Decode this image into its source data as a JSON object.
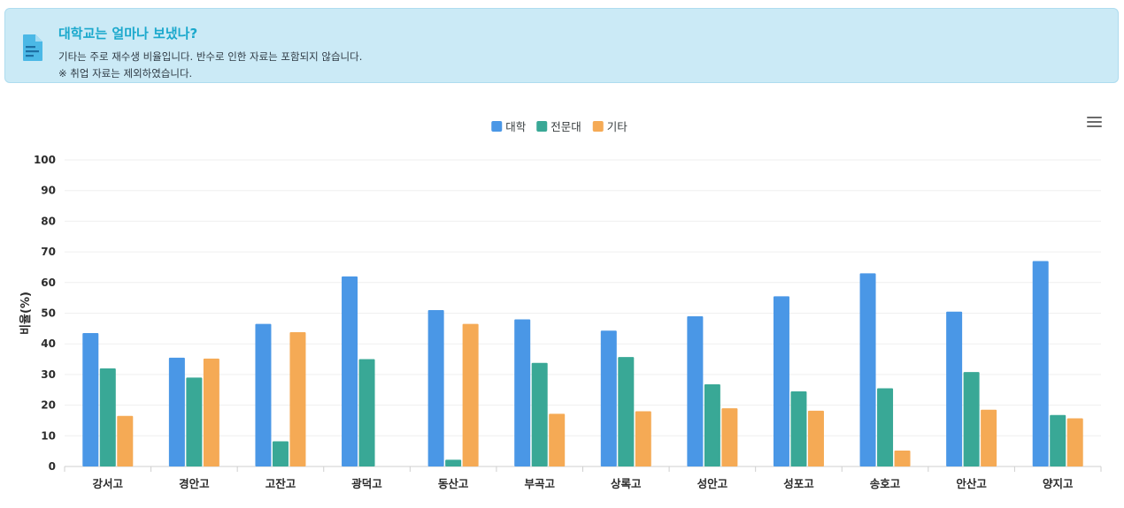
{
  "alert": {
    "icon": "document-icon",
    "title": "대학교는 얼마나 보냈나?",
    "line1": "기타는 주로 재수생 비율입니다. 반수로 인한 자료는 포함되지 않습니다.",
    "line2": "※ 취업 자료는 제외하였습니다."
  },
  "toolbar": {
    "menu_icon": "hamburger-menu-icon"
  },
  "chart_data": {
    "type": "bar",
    "categories": [
      "강서고",
      "경안고",
      "고잔고",
      "광덕고",
      "동산고",
      "부곡고",
      "상록고",
      "성안고",
      "성포고",
      "송호고",
      "안산고",
      "양지고"
    ],
    "series": [
      {
        "name": "대학",
        "color": "#4a97e6",
        "values": [
          43.5,
          35.5,
          46.5,
          62,
          51,
          48,
          44.3,
          49,
          55.5,
          63,
          50.5,
          67
        ]
      },
      {
        "name": "전문대",
        "color": "#39a896",
        "values": [
          32,
          29,
          8.2,
          35,
          2.2,
          33.8,
          35.7,
          26.8,
          24.5,
          25.5,
          30.8,
          16.8
        ]
      },
      {
        "name": "기타",
        "color": "#f5aa55",
        "values": [
          16.5,
          35.2,
          43.8,
          0,
          46.5,
          17.2,
          18,
          19,
          18.2,
          5.2,
          18.5,
          15.7
        ]
      }
    ],
    "ylabel": "비율(%)",
    "ylim": [
      0,
      100
    ],
    "yticks": [
      0,
      10,
      20,
      30,
      40,
      50,
      60,
      70,
      80,
      90,
      100
    ],
    "grid": true,
    "legend": "top-center"
  }
}
